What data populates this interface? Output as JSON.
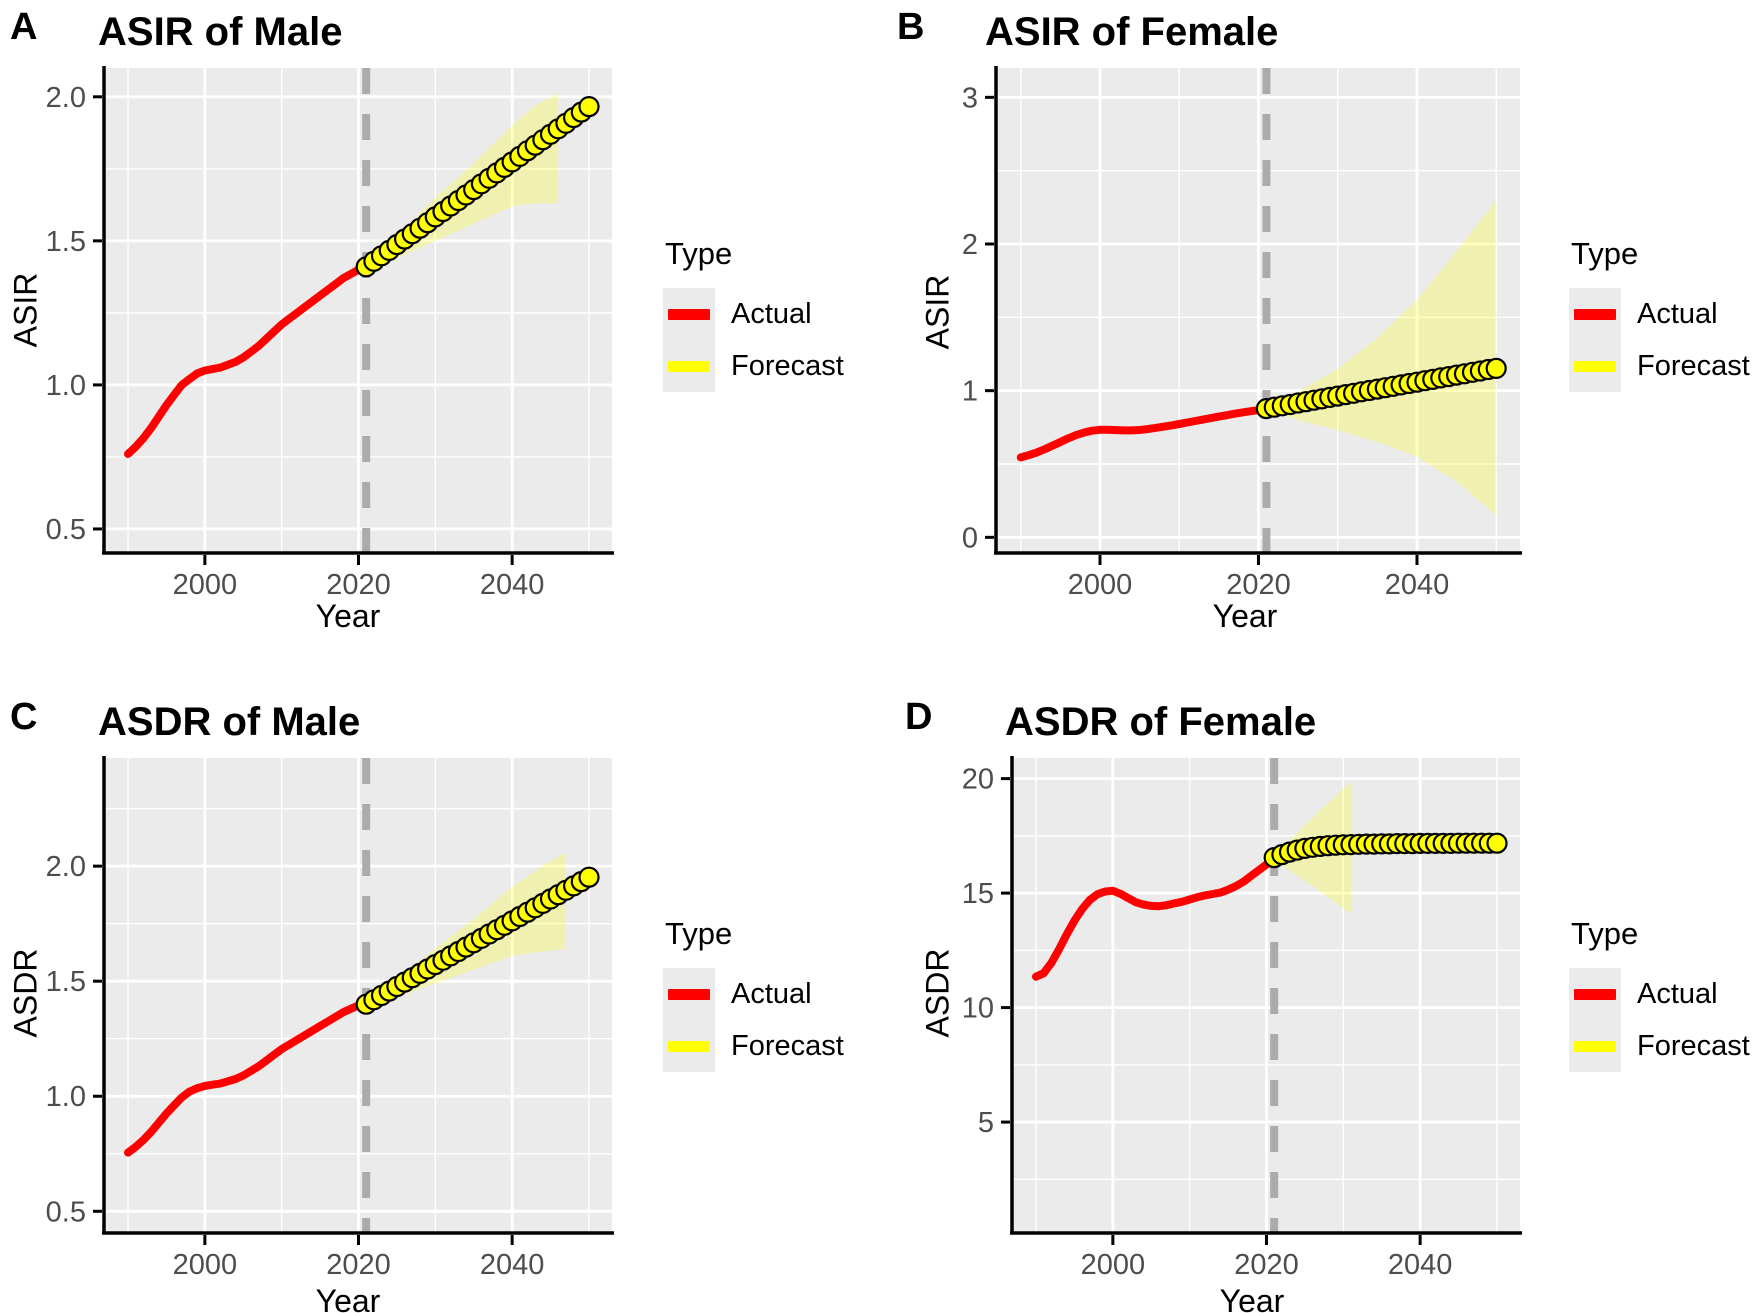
{
  "colors": {
    "panel_bg": "#ebebeb",
    "grid": "#ffffff",
    "axis": "#000000",
    "tick_text": "#4d4d4d",
    "vline": "#ababab",
    "actual": "#ff0000",
    "forecast_fill": "#ffff00",
    "forecast_stroke": "#000000",
    "band_fill": "rgba(255,255,0,0.25)"
  },
  "chart_data": [
    {
      "type": "line",
      "panel": "A",
      "title": "ASIR of Male",
      "xlabel": "Year",
      "ylabel": "ASIR",
      "xlim": [
        1987,
        2053
      ],
      "ylim": [
        0.42,
        2.1
      ],
      "x_ticks": [
        2000,
        2020,
        2040
      ],
      "x_tick_labels": [
        "2000",
        "2020",
        "2040"
      ],
      "x_minor": [
        1990,
        2010,
        2030,
        2050
      ],
      "y_ticks": [
        0.5,
        1.0,
        1.5,
        2.0
      ],
      "y_tick_labels": [
        "0.5",
        "1.0",
        "1.5",
        "2.0"
      ],
      "y_minor": [
        0.75,
        1.25,
        1.75
      ],
      "grid": true,
      "legend_position": "right",
      "vline_x": 2021,
      "legend": {
        "title": "Type",
        "items": [
          {
            "label": "Actual",
            "color": "#ff0000"
          },
          {
            "label": "Forecast",
            "color": "#ffff00"
          }
        ]
      },
      "band": {
        "x": [
          2021,
          2025,
          2030,
          2035,
          2040,
          2043,
          2046
        ],
        "upper": [
          1.43,
          1.52,
          1.65,
          1.77,
          1.9,
          1.97,
          2.01
        ],
        "lower": [
          1.39,
          1.44,
          1.5,
          1.56,
          1.62,
          1.63,
          1.63
        ]
      },
      "series": [
        {
          "name": "Actual",
          "kind": "line",
          "x": [
            1990,
            1991,
            1992,
            1993,
            1994,
            1995,
            1996,
            1997,
            1998,
            1999,
            2000,
            2001,
            2002,
            2003,
            2004,
            2005,
            2006,
            2007,
            2008,
            2009,
            2010,
            2011,
            2012,
            2013,
            2014,
            2015,
            2016,
            2017,
            2018,
            2019,
            2020,
            2021
          ],
          "y": [
            0.76,
            0.785,
            0.815,
            0.85,
            0.89,
            0.93,
            0.965,
            1.0,
            1.02,
            1.04,
            1.05,
            1.055,
            1.06,
            1.07,
            1.08,
            1.095,
            1.115,
            1.135,
            1.16,
            1.185,
            1.21,
            1.23,
            1.25,
            1.27,
            1.29,
            1.31,
            1.33,
            1.35,
            1.37,
            1.385,
            1.4,
            1.41
          ]
        },
        {
          "name": "Forecast",
          "kind": "points",
          "x": [
            2021,
            2022,
            2023,
            2024,
            2025,
            2026,
            2027,
            2028,
            2029,
            2030,
            2031,
            2032,
            2033,
            2034,
            2035,
            2036,
            2037,
            2038,
            2039,
            2040,
            2041,
            2042,
            2043,
            2044,
            2045,
            2046,
            2047,
            2048,
            2049,
            2050
          ],
          "y": [
            1.41,
            1.429,
            1.448,
            1.467,
            1.487,
            1.506,
            1.525,
            1.544,
            1.563,
            1.583,
            1.602,
            1.621,
            1.64,
            1.659,
            1.678,
            1.698,
            1.717,
            1.736,
            1.755,
            1.774,
            1.793,
            1.813,
            1.832,
            1.851,
            1.87,
            1.889,
            1.908,
            1.928,
            1.947,
            1.966
          ]
        }
      ]
    },
    {
      "type": "line",
      "panel": "B",
      "title": "ASIR of Female",
      "xlabel": "Year",
      "ylabel": "ASIR",
      "xlim": [
        1987,
        2053
      ],
      "ylim": [
        -0.1,
        3.2
      ],
      "x_ticks": [
        2000,
        2020,
        2040
      ],
      "x_tick_labels": [
        "2000",
        "2020",
        "2040"
      ],
      "x_minor": [
        1990,
        2010,
        2030,
        2050
      ],
      "y_ticks": [
        0,
        1,
        2,
        3
      ],
      "y_tick_labels": [
        "0",
        "1",
        "2",
        "3"
      ],
      "y_minor": [
        0.5,
        1.5,
        2.5
      ],
      "grid": true,
      "legend_position": "right",
      "vline_x": 2021,
      "legend": {
        "title": "Type",
        "items": [
          {
            "label": "Actual",
            "color": "#ff0000"
          },
          {
            "label": "Forecast",
            "color": "#ffff00"
          }
        ]
      },
      "band": {
        "x": [
          2021,
          2025,
          2030,
          2035,
          2040,
          2045,
          2050
        ],
        "upper": [
          0.89,
          0.99,
          1.15,
          1.36,
          1.62,
          1.95,
          2.3
        ],
        "lower": [
          0.867,
          0.8,
          0.73,
          0.65,
          0.55,
          0.38,
          0.15
        ]
      },
      "series": [
        {
          "name": "Actual",
          "kind": "line",
          "x": [
            1990,
            1991,
            1992,
            1993,
            1994,
            1995,
            1996,
            1997,
            1998,
            1999,
            2000,
            2001,
            2002,
            2003,
            2004,
            2005,
            2006,
            2007,
            2008,
            2009,
            2010,
            2011,
            2012,
            2013,
            2014,
            2015,
            2016,
            2017,
            2018,
            2019,
            2020,
            2021
          ],
          "y": [
            0.545,
            0.56,
            0.578,
            0.6,
            0.625,
            0.65,
            0.675,
            0.697,
            0.715,
            0.727,
            0.733,
            0.734,
            0.731,
            0.729,
            0.729,
            0.732,
            0.738,
            0.746,
            0.754,
            0.763,
            0.773,
            0.783,
            0.793,
            0.803,
            0.813,
            0.823,
            0.833,
            0.843,
            0.852,
            0.86,
            0.867,
            0.872
          ]
        },
        {
          "name": "Forecast",
          "kind": "points",
          "x": [
            2021,
            2022,
            2023,
            2024,
            2025,
            2026,
            2027,
            2028,
            2029,
            2030,
            2031,
            2032,
            2033,
            2034,
            2035,
            2036,
            2037,
            2038,
            2039,
            2040,
            2041,
            2042,
            2043,
            2044,
            2045,
            2046,
            2047,
            2048,
            2049,
            2050
          ],
          "y": [
            0.878,
            0.887,
            0.897,
            0.906,
            0.916,
            0.925,
            0.935,
            0.944,
            0.954,
            0.963,
            0.973,
            0.982,
            0.992,
            1.001,
            1.011,
            1.02,
            1.03,
            1.039,
            1.049,
            1.058,
            1.068,
            1.077,
            1.087,
            1.096,
            1.106,
            1.115,
            1.125,
            1.134,
            1.144,
            1.152
          ]
        }
      ]
    },
    {
      "type": "line",
      "panel": "C",
      "title": "ASDR of Male",
      "xlabel": "Year",
      "ylabel": "ASDR",
      "xlim": [
        1987,
        2053
      ],
      "ylim": [
        0.41,
        2.47
      ],
      "x_ticks": [
        2000,
        2020,
        2040
      ],
      "x_tick_labels": [
        "2000",
        "2020",
        "2040"
      ],
      "x_minor": [
        1990,
        2010,
        2030,
        2050
      ],
      "y_ticks": [
        0.5,
        1.0,
        1.5,
        2.0
      ],
      "y_tick_labels": [
        "0.5",
        "1.0",
        "1.5",
        "2.0"
      ],
      "y_minor": [
        0.75,
        1.25,
        1.75,
        2.25
      ],
      "grid": true,
      "legend_position": "right",
      "vline_x": 2021,
      "legend": {
        "title": "Type",
        "items": [
          {
            "label": "Actual",
            "color": "#ff0000"
          },
          {
            "label": "Forecast",
            "color": "#ffff00"
          }
        ]
      },
      "band": {
        "x": [
          2021,
          2025,
          2030,
          2035,
          2040,
          2044,
          2047
        ],
        "upper": [
          1.42,
          1.51,
          1.64,
          1.77,
          1.91,
          2.0,
          2.06
        ],
        "lower": [
          1.38,
          1.43,
          1.49,
          1.55,
          1.61,
          1.63,
          1.64
        ]
      },
      "series": [
        {
          "name": "Actual",
          "kind": "line",
          "x": [
            1990,
            1991,
            1992,
            1993,
            1994,
            1995,
            1996,
            1997,
            1998,
            1999,
            2000,
            2001,
            2002,
            2003,
            2004,
            2005,
            2006,
            2007,
            2008,
            2009,
            2010,
            2011,
            2012,
            2013,
            2014,
            2015,
            2016,
            2017,
            2018,
            2019,
            2020,
            2021
          ],
          "y": [
            0.755,
            0.78,
            0.81,
            0.845,
            0.885,
            0.925,
            0.96,
            0.995,
            1.02,
            1.035,
            1.045,
            1.05,
            1.055,
            1.065,
            1.075,
            1.09,
            1.11,
            1.13,
            1.155,
            1.18,
            1.205,
            1.225,
            1.245,
            1.265,
            1.285,
            1.305,
            1.325,
            1.345,
            1.365,
            1.38,
            1.395,
            1.405
          ]
        },
        {
          "name": "Forecast",
          "kind": "points",
          "x": [
            2021,
            2022,
            2023,
            2024,
            2025,
            2026,
            2027,
            2028,
            2029,
            2030,
            2031,
            2032,
            2033,
            2034,
            2035,
            2036,
            2037,
            2038,
            2039,
            2040,
            2041,
            2042,
            2043,
            2044,
            2045,
            2046,
            2047,
            2048,
            2049,
            2050
          ],
          "y": [
            1.4,
            1.419,
            1.438,
            1.457,
            1.477,
            1.496,
            1.515,
            1.534,
            1.553,
            1.572,
            1.591,
            1.61,
            1.629,
            1.648,
            1.667,
            1.686,
            1.705,
            1.724,
            1.743,
            1.762,
            1.781,
            1.8,
            1.819,
            1.838,
            1.857,
            1.876,
            1.895,
            1.914,
            1.933,
            1.952
          ]
        }
      ]
    },
    {
      "type": "line",
      "panel": "D",
      "title": "ASDR of Female",
      "xlabel": "Year",
      "ylabel": "ASDR",
      "xlim": [
        1987,
        2053
      ],
      "ylim": [
        0.2,
        20.9
      ],
      "x_ticks": [
        2000,
        2020,
        2040
      ],
      "x_tick_labels": [
        "2000",
        "2020",
        "2040"
      ],
      "x_minor": [
        1990,
        2010,
        2030,
        2050
      ],
      "y_ticks": [
        5,
        10,
        15,
        20
      ],
      "y_tick_labels": [
        "5",
        "10",
        "15",
        "20"
      ],
      "y_minor": [
        2.5,
        7.5,
        12.5,
        17.5
      ],
      "grid": true,
      "legend_position": "right",
      "vline_x": 2021,
      "legend": {
        "title": "Type",
        "items": [
          {
            "label": "Actual",
            "color": "#ff0000"
          },
          {
            "label": "Forecast",
            "color": "#ffff00"
          }
        ]
      },
      "band": {
        "x": [
          2021,
          2026,
          2031
        ],
        "upper": [
          16.6,
          18.3,
          19.85
        ],
        "lower": [
          16.45,
          15.3,
          14.1
        ]
      },
      "series": [
        {
          "name": "Actual",
          "kind": "line",
          "x": [
            1990,
            1991,
            1992,
            1993,
            1994,
            1995,
            1996,
            1997,
            1998,
            1999,
            2000,
            2001,
            2002,
            2003,
            2004,
            2005,
            2006,
            2007,
            2008,
            2009,
            2010,
            2011,
            2012,
            2013,
            2014,
            2015,
            2016,
            2017,
            2018,
            2019,
            2020,
            2021
          ],
          "y": [
            11.35,
            11.5,
            11.95,
            12.55,
            13.2,
            13.8,
            14.3,
            14.7,
            14.95,
            15.07,
            15.1,
            14.97,
            14.78,
            14.6,
            14.5,
            14.44,
            14.43,
            14.47,
            14.55,
            14.62,
            14.72,
            14.82,
            14.9,
            14.96,
            15.02,
            15.15,
            15.3,
            15.5,
            15.75,
            16.0,
            16.25,
            16.42
          ]
        },
        {
          "name": "Forecast",
          "kind": "points",
          "x": [
            2021,
            2022,
            2023,
            2024,
            2025,
            2026,
            2027,
            2028,
            2029,
            2030,
            2031,
            2032,
            2033,
            2034,
            2035,
            2036,
            2037,
            2038,
            2039,
            2040,
            2041,
            2042,
            2043,
            2044,
            2045,
            2046,
            2047,
            2048,
            2049,
            2050
          ],
          "y": [
            16.55,
            16.68,
            16.79,
            16.88,
            16.95,
            17.0,
            17.04,
            17.07,
            17.09,
            17.11,
            17.12,
            17.13,
            17.14,
            17.14,
            17.15,
            17.15,
            17.16,
            17.16,
            17.16,
            17.17,
            17.17,
            17.17,
            17.17,
            17.17,
            17.18,
            17.18,
            17.18,
            17.18,
            17.18,
            17.18
          ]
        }
      ]
    }
  ]
}
